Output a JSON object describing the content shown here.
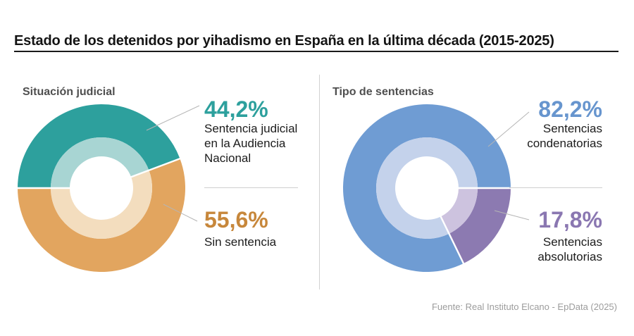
{
  "title": "Estado de los detenidos por yihadismo en España en la última década (2015-2025)",
  "source": "Fuente: Real Instituto Elcano - EpData (2025)",
  "chart_data": [
    {
      "type": "pie",
      "subtype": "double-ring-donut",
      "heading": "Situación judicial",
      "rotation_deg": 180,
      "direction": "clockwise",
      "legend_position": "right",
      "segments": [
        {
          "name": "sentencia-audiencia-nacional",
          "label": "Sentencia judicial en la Audiencia Nacional",
          "label_lines": [
            "Sentencia judicial",
            "en la Audiencia",
            "Nacional"
          ],
          "value_pct": 44.2,
          "pct_label": "44,2%",
          "color": "#2da09d",
          "inner_ring_color": "#a8d5d3",
          "pct_text_color": "#2da09d"
        },
        {
          "name": "sin-sentencia",
          "label": "Sin sentencia",
          "label_lines": [
            "Sin sentencia"
          ],
          "value_pct": 55.6,
          "pct_label": "55,6%",
          "color": "#e2a55f",
          "inner_ring_color": "#f3ddbe",
          "pct_text_color": "#c7873b"
        }
      ]
    },
    {
      "type": "pie",
      "subtype": "double-ring-donut",
      "heading": "Tipo de sentencias",
      "rotation_deg": -64.08,
      "direction": "clockwise",
      "legend_position": "right",
      "segments": [
        {
          "name": "sentencias-condenatorias",
          "label": "Sentencias condenatorias",
          "label_lines": [
            "Sentencias",
            "condenatorias"
          ],
          "value_pct": 82.2,
          "pct_label": "82,2%",
          "color": "#6f9cd3",
          "inner_ring_color": "#c4d2eb",
          "pct_text_color": "#6795ce"
        },
        {
          "name": "sentencias-absolutorias",
          "label": "Sentencias absolutorias",
          "label_lines": [
            "Sentencias",
            "absolutorias"
          ],
          "value_pct": 17.8,
          "pct_label": "17,8%",
          "color": "#8c7ab1",
          "inner_ring_color": "#cdc3df",
          "pct_text_color": "#8a77b1"
        }
      ]
    }
  ]
}
